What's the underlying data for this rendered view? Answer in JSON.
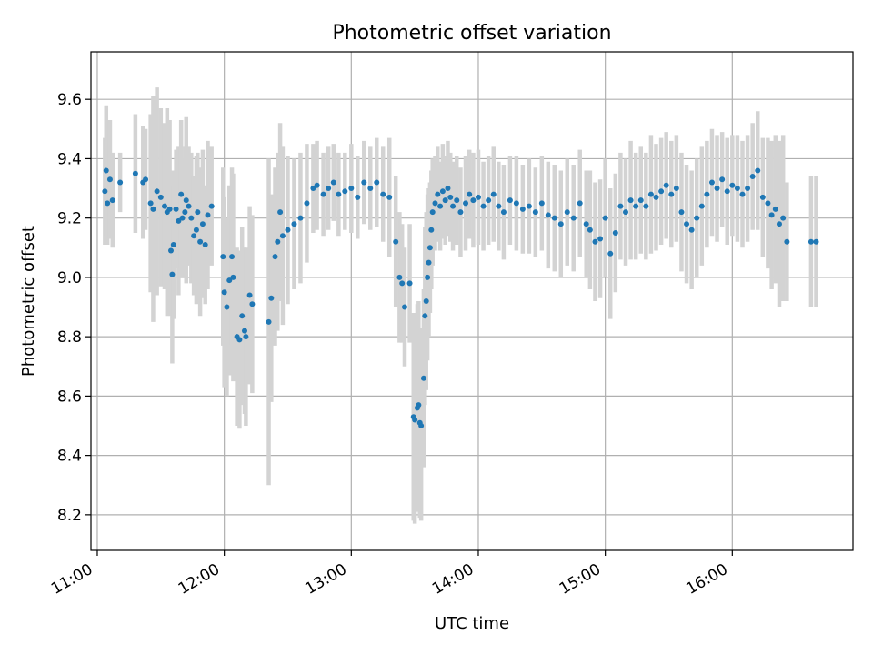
{
  "chart_data": {
    "type": "scatter",
    "title": "Photometric offset variation",
    "xlabel": "UTC time",
    "ylabel": "Photometric offset",
    "x_unit": "hour of day (UTC)",
    "xlim": [
      10.95,
      16.95
    ],
    "ylim": [
      8.08,
      9.76
    ],
    "x_ticks": [
      11,
      12,
      13,
      14,
      15,
      16
    ],
    "x_tick_labels": [
      "11:00",
      "12:00",
      "13:00",
      "14:00",
      "15:00",
      "16:00"
    ],
    "y_ticks": [
      8.2,
      8.4,
      8.6,
      8.8,
      9.0,
      9.2,
      9.4,
      9.6
    ],
    "y_tick_labels": [
      "8.2",
      "8.4",
      "8.6",
      "8.8",
      "9.0",
      "9.2",
      "9.4",
      "9.6"
    ],
    "grid": true,
    "colors": {
      "points": "#1f77b4",
      "error_bars": "#d3d3d3",
      "grid": "#b0b0b0"
    },
    "series": [
      {
        "marker": "dot",
        "error_bars": "vertical",
        "points": [
          {
            "x": 11.06,
            "y": 9.29,
            "err": 0.18
          },
          {
            "x": 11.07,
            "y": 9.36,
            "err": 0.22
          },
          {
            "x": 11.08,
            "y": 9.25,
            "err": 0.14
          },
          {
            "x": 11.1,
            "y": 9.33,
            "err": 0.2
          },
          {
            "x": 11.12,
            "y": 9.26,
            "err": 0.16
          },
          {
            "x": 11.18,
            "y": 9.32,
            "err": 0.1
          },
          {
            "x": 11.3,
            "y": 9.35,
            "err": 0.2
          },
          {
            "x": 11.36,
            "y": 9.32,
            "err": 0.19
          },
          {
            "x": 11.38,
            "y": 9.33,
            "err": 0.17
          },
          {
            "x": 11.42,
            "y": 9.25,
            "err": 0.3
          },
          {
            "x": 11.44,
            "y": 9.23,
            "err": 0.38
          },
          {
            "x": 11.47,
            "y": 9.29,
            "err": 0.35
          },
          {
            "x": 11.5,
            "y": 9.27,
            "err": 0.3
          },
          {
            "x": 11.53,
            "y": 9.24,
            "err": 0.28
          },
          {
            "x": 11.55,
            "y": 9.22,
            "err": 0.35
          },
          {
            "x": 11.57,
            "y": 9.23,
            "err": 0.3
          },
          {
            "x": 11.58,
            "y": 9.09,
            "err": 0.22
          },
          {
            "x": 11.59,
            "y": 9.01,
            "err": 0.3
          },
          {
            "x": 11.6,
            "y": 9.11,
            "err": 0.25
          },
          {
            "x": 11.62,
            "y": 9.23,
            "err": 0.2
          },
          {
            "x": 11.64,
            "y": 9.19,
            "err": 0.25
          },
          {
            "x": 11.66,
            "y": 9.28,
            "err": 0.25
          },
          {
            "x": 11.67,
            "y": 9.2,
            "err": 0.2
          },
          {
            "x": 11.69,
            "y": 9.22,
            "err": 0.22
          },
          {
            "x": 11.7,
            "y": 9.26,
            "err": 0.28
          },
          {
            "x": 11.72,
            "y": 9.24,
            "err": 0.2
          },
          {
            "x": 11.74,
            "y": 9.2,
            "err": 0.22
          },
          {
            "x": 11.76,
            "y": 9.14,
            "err": 0.2
          },
          {
            "x": 11.78,
            "y": 9.16,
            "err": 0.25
          },
          {
            "x": 11.79,
            "y": 9.22,
            "err": 0.2
          },
          {
            "x": 11.81,
            "y": 9.12,
            "err": 0.25
          },
          {
            "x": 11.83,
            "y": 9.18,
            "err": 0.25
          },
          {
            "x": 11.85,
            "y": 9.11,
            "err": 0.2
          },
          {
            "x": 11.87,
            "y": 9.21,
            "err": 0.25
          },
          {
            "x": 11.9,
            "y": 9.24,
            "err": 0.2
          },
          {
            "x": 11.99,
            "y": 9.07,
            "err": 0.3
          },
          {
            "x": 12.0,
            "y": 8.95,
            "err": 0.32
          },
          {
            "x": 12.02,
            "y": 8.9,
            "err": 0.3
          },
          {
            "x": 12.04,
            "y": 8.99,
            "err": 0.32
          },
          {
            "x": 12.06,
            "y": 9.07,
            "err": 0.3
          },
          {
            "x": 12.07,
            "y": 9.0,
            "err": 0.35
          },
          {
            "x": 12.1,
            "y": 8.8,
            "err": 0.3
          },
          {
            "x": 12.12,
            "y": 8.79,
            "err": 0.3
          },
          {
            "x": 12.14,
            "y": 8.87,
            "err": 0.3
          },
          {
            "x": 12.16,
            "y": 8.82,
            "err": 0.28
          },
          {
            "x": 12.17,
            "y": 8.8,
            "err": 0.3
          },
          {
            "x": 12.2,
            "y": 8.94,
            "err": 0.3
          },
          {
            "x": 12.22,
            "y": 8.91,
            "err": 0.3
          },
          {
            "x": 12.35,
            "y": 8.85,
            "err": 0.55
          },
          {
            "x": 12.37,
            "y": 8.93,
            "err": 0.35
          },
          {
            "x": 12.4,
            "y": 9.07,
            "err": 0.3
          },
          {
            "x": 12.42,
            "y": 9.12,
            "err": 0.3
          },
          {
            "x": 12.44,
            "y": 9.22,
            "err": 0.3
          },
          {
            "x": 12.46,
            "y": 9.14,
            "err": 0.3
          },
          {
            "x": 12.5,
            "y": 9.16,
            "err": 0.25
          },
          {
            "x": 12.55,
            "y": 9.18,
            "err": 0.22
          },
          {
            "x": 12.6,
            "y": 9.2,
            "err": 0.22
          },
          {
            "x": 12.65,
            "y": 9.25,
            "err": 0.2
          },
          {
            "x": 12.7,
            "y": 9.3,
            "err": 0.15
          },
          {
            "x": 12.73,
            "y": 9.31,
            "err": 0.15
          },
          {
            "x": 12.78,
            "y": 9.28,
            "err": 0.14
          },
          {
            "x": 12.82,
            "y": 9.3,
            "err": 0.14
          },
          {
            "x": 12.86,
            "y": 9.32,
            "err": 0.13
          },
          {
            "x": 12.9,
            "y": 9.28,
            "err": 0.14
          },
          {
            "x": 12.95,
            "y": 9.29,
            "err": 0.13
          },
          {
            "x": 13.0,
            "y": 9.3,
            "err": 0.15
          },
          {
            "x": 13.05,
            "y": 9.27,
            "err": 0.14
          },
          {
            "x": 13.1,
            "y": 9.32,
            "err": 0.14
          },
          {
            "x": 13.15,
            "y": 9.3,
            "err": 0.14
          },
          {
            "x": 13.2,
            "y": 9.32,
            "err": 0.15
          },
          {
            "x": 13.25,
            "y": 9.28,
            "err": 0.16
          },
          {
            "x": 13.3,
            "y": 9.27,
            "err": 0.2
          },
          {
            "x": 13.35,
            "y": 9.12,
            "err": 0.22
          },
          {
            "x": 13.38,
            "y": 9.0,
            "err": 0.22
          },
          {
            "x": 13.4,
            "y": 8.98,
            "err": 0.2
          },
          {
            "x": 13.42,
            "y": 8.9,
            "err": 0.2
          },
          {
            "x": 13.46,
            "y": 8.98,
            "err": 0.2
          },
          {
            "x": 13.49,
            "y": 8.53,
            "err": 0.35
          },
          {
            "x": 13.5,
            "y": 8.52,
            "err": 0.35
          },
          {
            "x": 13.52,
            "y": 8.56,
            "err": 0.35
          },
          {
            "x": 13.53,
            "y": 8.57,
            "err": 0.35
          },
          {
            "x": 13.54,
            "y": 8.51,
            "err": 0.32
          },
          {
            "x": 13.55,
            "y": 8.5,
            "err": 0.32
          },
          {
            "x": 13.57,
            "y": 8.66,
            "err": 0.3
          },
          {
            "x": 13.58,
            "y": 8.87,
            "err": 0.3
          },
          {
            "x": 13.59,
            "y": 8.92,
            "err": 0.3
          },
          {
            "x": 13.6,
            "y": 9.0,
            "err": 0.28
          },
          {
            "x": 13.61,
            "y": 9.05,
            "err": 0.25
          },
          {
            "x": 13.62,
            "y": 9.1,
            "err": 0.22
          },
          {
            "x": 13.63,
            "y": 9.16,
            "err": 0.2
          },
          {
            "x": 13.64,
            "y": 9.22,
            "err": 0.18
          },
          {
            "x": 13.66,
            "y": 9.25,
            "err": 0.16
          },
          {
            "x": 13.68,
            "y": 9.28,
            "err": 0.16
          },
          {
            "x": 13.7,
            "y": 9.24,
            "err": 0.15
          },
          {
            "x": 13.72,
            "y": 9.29,
            "err": 0.16
          },
          {
            "x": 13.74,
            "y": 9.26,
            "err": 0.15
          },
          {
            "x": 13.76,
            "y": 9.3,
            "err": 0.16
          },
          {
            "x": 13.78,
            "y": 9.27,
            "err": 0.15
          },
          {
            "x": 13.8,
            "y": 9.24,
            "err": 0.15
          },
          {
            "x": 13.83,
            "y": 9.26,
            "err": 0.15
          },
          {
            "x": 13.86,
            "y": 9.22,
            "err": 0.15
          },
          {
            "x": 13.9,
            "y": 9.25,
            "err": 0.16
          },
          {
            "x": 13.93,
            "y": 9.28,
            "err": 0.15
          },
          {
            "x": 13.96,
            "y": 9.26,
            "err": 0.16
          },
          {
            "x": 14.0,
            "y": 9.27,
            "err": 0.16
          },
          {
            "x": 14.04,
            "y": 9.24,
            "err": 0.15
          },
          {
            "x": 14.08,
            "y": 9.26,
            "err": 0.15
          },
          {
            "x": 14.12,
            "y": 9.28,
            "err": 0.16
          },
          {
            "x": 14.16,
            "y": 9.24,
            "err": 0.15
          },
          {
            "x": 14.2,
            "y": 9.22,
            "err": 0.16
          },
          {
            "x": 14.25,
            "y": 9.26,
            "err": 0.15
          },
          {
            "x": 14.3,
            "y": 9.25,
            "err": 0.16
          },
          {
            "x": 14.35,
            "y": 9.23,
            "err": 0.15
          },
          {
            "x": 14.4,
            "y": 9.24,
            "err": 0.16
          },
          {
            "x": 14.45,
            "y": 9.22,
            "err": 0.15
          },
          {
            "x": 14.5,
            "y": 9.25,
            "err": 0.16
          },
          {
            "x": 14.55,
            "y": 9.21,
            "err": 0.18
          },
          {
            "x": 14.6,
            "y": 9.2,
            "err": 0.18
          },
          {
            "x": 14.65,
            "y": 9.18,
            "err": 0.18
          },
          {
            "x": 14.7,
            "y": 9.22,
            "err": 0.18
          },
          {
            "x": 14.75,
            "y": 9.2,
            "err": 0.18
          },
          {
            "x": 14.8,
            "y": 9.25,
            "err": 0.18
          },
          {
            "x": 14.85,
            "y": 9.18,
            "err": 0.18
          },
          {
            "x": 14.88,
            "y": 9.16,
            "err": 0.2
          },
          {
            "x": 14.92,
            "y": 9.12,
            "err": 0.2
          },
          {
            "x": 14.96,
            "y": 9.13,
            "err": 0.2
          },
          {
            "x": 15.0,
            "y": 9.2,
            "err": 0.2
          },
          {
            "x": 15.04,
            "y": 9.08,
            "err": 0.22
          },
          {
            "x": 15.08,
            "y": 9.15,
            "err": 0.2
          },
          {
            "x": 15.12,
            "y": 9.24,
            "err": 0.18
          },
          {
            "x": 15.16,
            "y": 9.22,
            "err": 0.18
          },
          {
            "x": 15.2,
            "y": 9.26,
            "err": 0.2
          },
          {
            "x": 15.24,
            "y": 9.24,
            "err": 0.18
          },
          {
            "x": 15.28,
            "y": 9.26,
            "err": 0.18
          },
          {
            "x": 15.32,
            "y": 9.24,
            "err": 0.18
          },
          {
            "x": 15.36,
            "y": 9.28,
            "err": 0.2
          },
          {
            "x": 15.4,
            "y": 9.27,
            "err": 0.18
          },
          {
            "x": 15.44,
            "y": 9.29,
            "err": 0.18
          },
          {
            "x": 15.48,
            "y": 9.31,
            "err": 0.18
          },
          {
            "x": 15.52,
            "y": 9.28,
            "err": 0.18
          },
          {
            "x": 15.56,
            "y": 9.3,
            "err": 0.18
          },
          {
            "x": 15.6,
            "y": 9.22,
            "err": 0.2
          },
          {
            "x": 15.64,
            "y": 9.18,
            "err": 0.2
          },
          {
            "x": 15.68,
            "y": 9.16,
            "err": 0.2
          },
          {
            "x": 15.72,
            "y": 9.2,
            "err": 0.2
          },
          {
            "x": 15.76,
            "y": 9.24,
            "err": 0.2
          },
          {
            "x": 15.8,
            "y": 9.28,
            "err": 0.18
          },
          {
            "x": 15.84,
            "y": 9.32,
            "err": 0.18
          },
          {
            "x": 15.88,
            "y": 9.3,
            "err": 0.18
          },
          {
            "x": 15.92,
            "y": 9.33,
            "err": 0.16
          },
          {
            "x": 15.96,
            "y": 9.29,
            "err": 0.18
          },
          {
            "x": 16.0,
            "y": 9.31,
            "err": 0.17
          },
          {
            "x": 16.04,
            "y": 9.3,
            "err": 0.18
          },
          {
            "x": 16.08,
            "y": 9.28,
            "err": 0.18
          },
          {
            "x": 16.12,
            "y": 9.3,
            "err": 0.18
          },
          {
            "x": 16.16,
            "y": 9.34,
            "err": 0.18
          },
          {
            "x": 16.2,
            "y": 9.36,
            "err": 0.2
          },
          {
            "x": 16.24,
            "y": 9.27,
            "err": 0.2
          },
          {
            "x": 16.28,
            "y": 9.25,
            "err": 0.22
          },
          {
            "x": 16.31,
            "y": 9.21,
            "err": 0.25
          },
          {
            "x": 16.34,
            "y": 9.23,
            "err": 0.25
          },
          {
            "x": 16.37,
            "y": 9.18,
            "err": 0.28
          },
          {
            "x": 16.4,
            "y": 9.2,
            "err": 0.28
          },
          {
            "x": 16.43,
            "y": 9.12,
            "err": 0.2
          },
          {
            "x": 16.62,
            "y": 9.12,
            "err": 0.22
          },
          {
            "x": 16.66,
            "y": 9.12,
            "err": 0.22
          }
        ]
      }
    ]
  }
}
